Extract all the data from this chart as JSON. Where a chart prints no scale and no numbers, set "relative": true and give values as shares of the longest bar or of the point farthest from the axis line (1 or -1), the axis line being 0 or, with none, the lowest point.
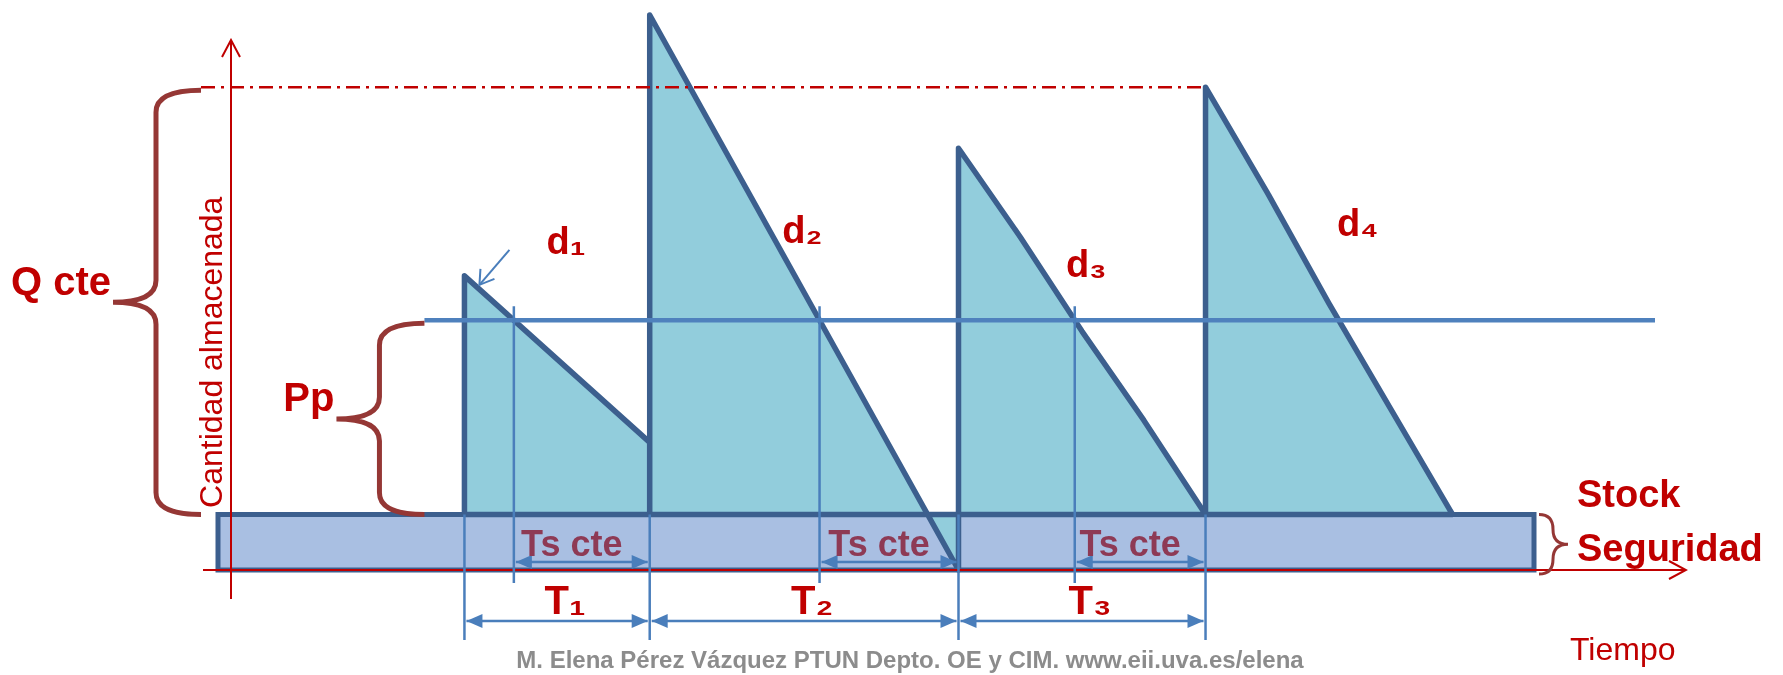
{
  "chart_data": {
    "type": "area",
    "relative": true,
    "xlabel": "Tiempo",
    "categories": [
      null,
      null,
      null,
      null,
      null,
      null,
      null,
      null,
      null,
      null,
      null,
      null,
      null,
      null,
      null,
      null,
      null
    ],
    "series": [
      {
        "name": "d₁",
        "color": "#92cddc",
        "values": [
          0.53,
          0.43,
          0.33,
          0.23,
          null,
          null,
          null,
          null,
          null,
          null,
          null,
          null,
          null,
          null,
          null,
          null,
          null
        ]
      },
      {
        "name": "d₂",
        "color": "#92cddc",
        "values": [
          null,
          null,
          null,
          1,
          0.8,
          0.6,
          0.4,
          0.2,
          0,
          null,
          null,
          null,
          null,
          null,
          null,
          null,
          null
        ]
      },
      {
        "name": "d₃",
        "color": "#92cddc",
        "values": [
          null,
          null,
          null,
          null,
          null,
          null,
          null,
          null,
          0.76,
          0.6,
          0.43,
          0.27,
          0.1,
          null,
          null,
          null,
          null
        ]
      },
      {
        "name": "d₄",
        "color": "#92cddc",
        "values": [
          null,
          null,
          null,
          null,
          null,
          null,
          null,
          null,
          null,
          null,
          null,
          null,
          0.87,
          0.68,
          0.48,
          0.29,
          0.1
        ]
      }
    ],
    "ref_lines": [
      {
        "axis": "y",
        "value": 0.87,
        "label": "Q cte",
        "color": "#c00000",
        "line_style": "dashed"
      },
      {
        "axis": "y",
        "value": 0.45,
        "label": "Pp",
        "color": "#4f81bd",
        "line_style": "solid"
      }
    ],
    "bands": [
      {
        "axis": "y",
        "from": 0,
        "to": 0.1,
        "label": "Stock Seguridad",
        "color": "#a9bfe2"
      }
    ],
    "annotations": [
      "T₁",
      "T₂",
      "T₃",
      "Ts cte",
      "Ts cte",
      "Ts cte",
      "Cantidad almacenada",
      "M. Elena Pérez Vázquez PTUN Depto. OE y CIM. www.eii.uva.es/elena"
    ]
  }
}
